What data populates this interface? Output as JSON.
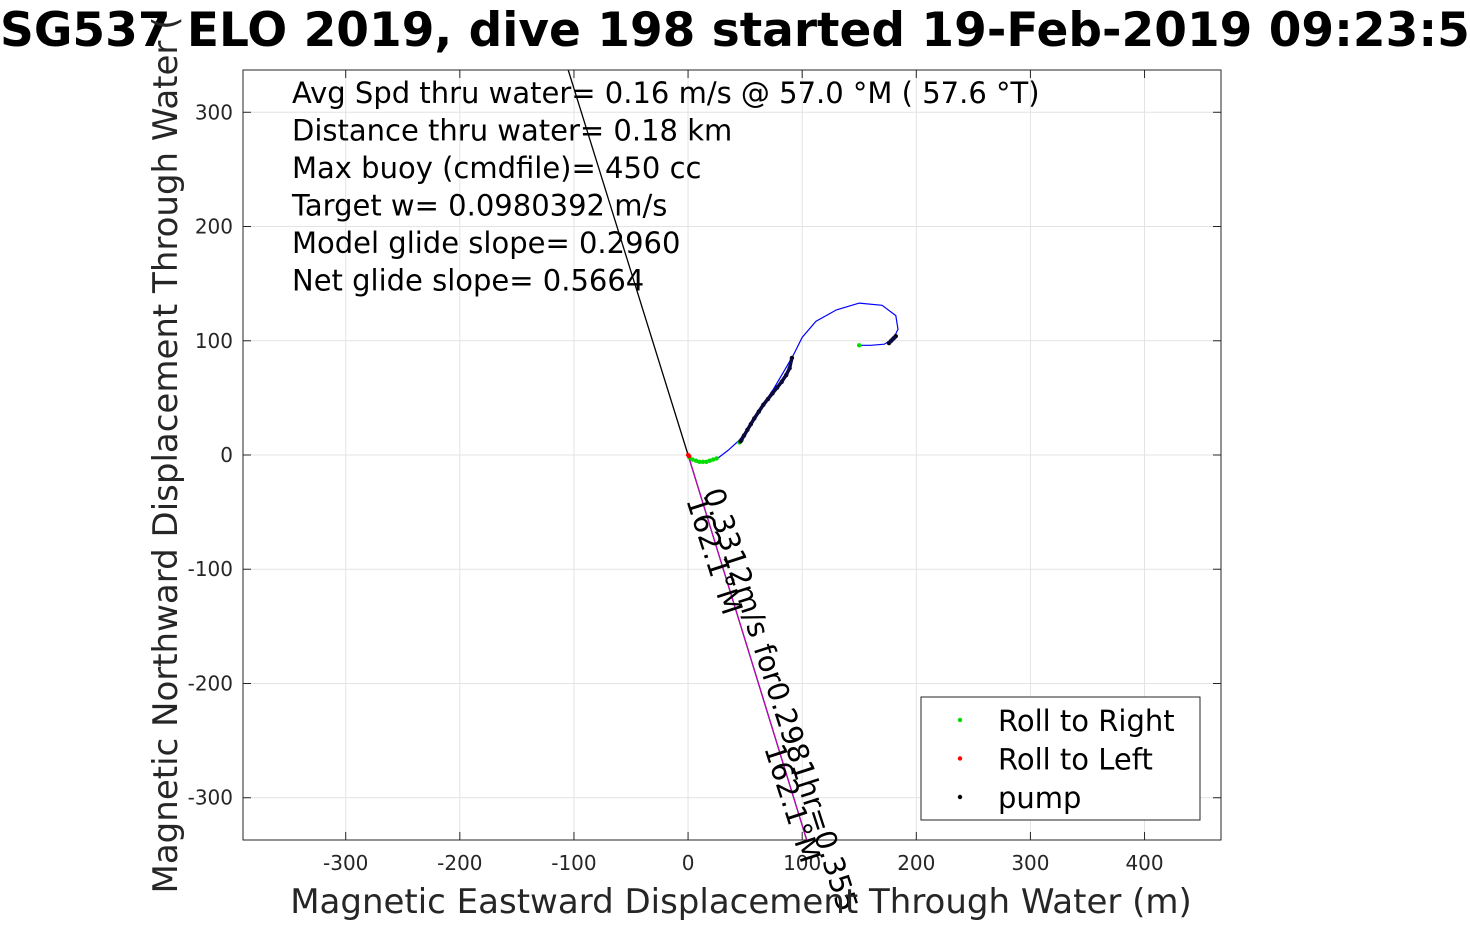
{
  "chart_data": {
    "type": "line",
    "title": "SG537 ELO 2019, dive 198 started 19-Feb-2019 09:23:5",
    "xlabel": "Magnetic Eastward Displacement Through Water (m)",
    "ylabel": "Magnetic Northward Displacement Through Water (",
    "xlim": [
      -390,
      467
    ],
    "ylim": [
      -337,
      337
    ],
    "xticks": [
      -300,
      -200,
      -100,
      0,
      100,
      200,
      300,
      400
    ],
    "yticks": [
      -300,
      -200,
      -100,
      0,
      100,
      200,
      300
    ],
    "xtick_labels": [
      "-300",
      "-200",
      "-100",
      "0",
      "100",
      "200",
      "300",
      "400"
    ],
    "ytick_labels": [
      "-300",
      "-200",
      "-100",
      "0",
      "100",
      "200",
      "300"
    ],
    "grid": true,
    "legend_position": "bottom-right",
    "annotations": [
      "Avg Spd thru water=  0.16 m/s @  57.0 °M ( 57.6 °T)",
      "Distance thru water=  0.18 km",
      "Max buoy (cmdfile)= 450 cc",
      "Target w= 0.0980392 m/s",
      "Model glide slope= 0.2960",
      "Net glide slope= 0.5664"
    ],
    "vector_labels": [
      {
        "text": "0.3312m/s for0.2981hr=0.355",
        "bearing_deg": 162.1
      },
      {
        "text": "162.1°M",
        "bearing_deg": 162.1
      },
      {
        "text": "162.1°M",
        "bearing_deg": 162.1
      }
    ],
    "track": {
      "name": "",
      "color": "#0000ff",
      "x": [
        0,
        5,
        10,
        18,
        27,
        35,
        45,
        55,
        65,
        75,
        85,
        92,
        100,
        112,
        130,
        150,
        170,
        182,
        184,
        180,
        172,
        160,
        148
      ],
      "y": [
        0,
        -5,
        -7,
        -6,
        -2,
        4,
        13,
        27,
        43,
        58,
        75,
        87,
        103,
        117,
        127,
        133,
        131,
        122,
        110,
        102,
        97,
        96,
        96
      ]
    },
    "current_line": {
      "color": "#000000",
      "x": [
        -105,
        0,
        104
      ],
      "y": [
        337,
        0,
        -337
      ]
    },
    "vector_line": {
      "color": "#cc00cc",
      "x": [
        0,
        104
      ],
      "y": [
        0,
        -337
      ]
    },
    "series": [
      {
        "name": "Roll to Right",
        "color": "#00dd00",
        "x": [
          150,
          1,
          4,
          7,
          10,
          13,
          16,
          19,
          22,
          25,
          45,
          47
        ],
        "y": [
          96,
          -2,
          -4,
          -5,
          -6,
          -6,
          -6,
          -5,
          -4,
          -3,
          11,
          13
        ]
      },
      {
        "name": "Roll to Left",
        "color": "#ff0000",
        "x": [
          0,
          1
        ],
        "y": [
          0,
          -1
        ]
      },
      {
        "name": "pump",
        "color": "#000000",
        "x": [
          46,
          49,
          52,
          55,
          58,
          62,
          66,
          70,
          74,
          78,
          82,
          86,
          89,
          91,
          176,
          178,
          180,
          182
        ],
        "y": [
          12,
          17,
          22,
          27,
          32,
          38,
          44,
          49,
          54,
          59,
          64,
          70,
          76,
          85,
          98,
          100,
          102,
          104
        ]
      }
    ]
  }
}
